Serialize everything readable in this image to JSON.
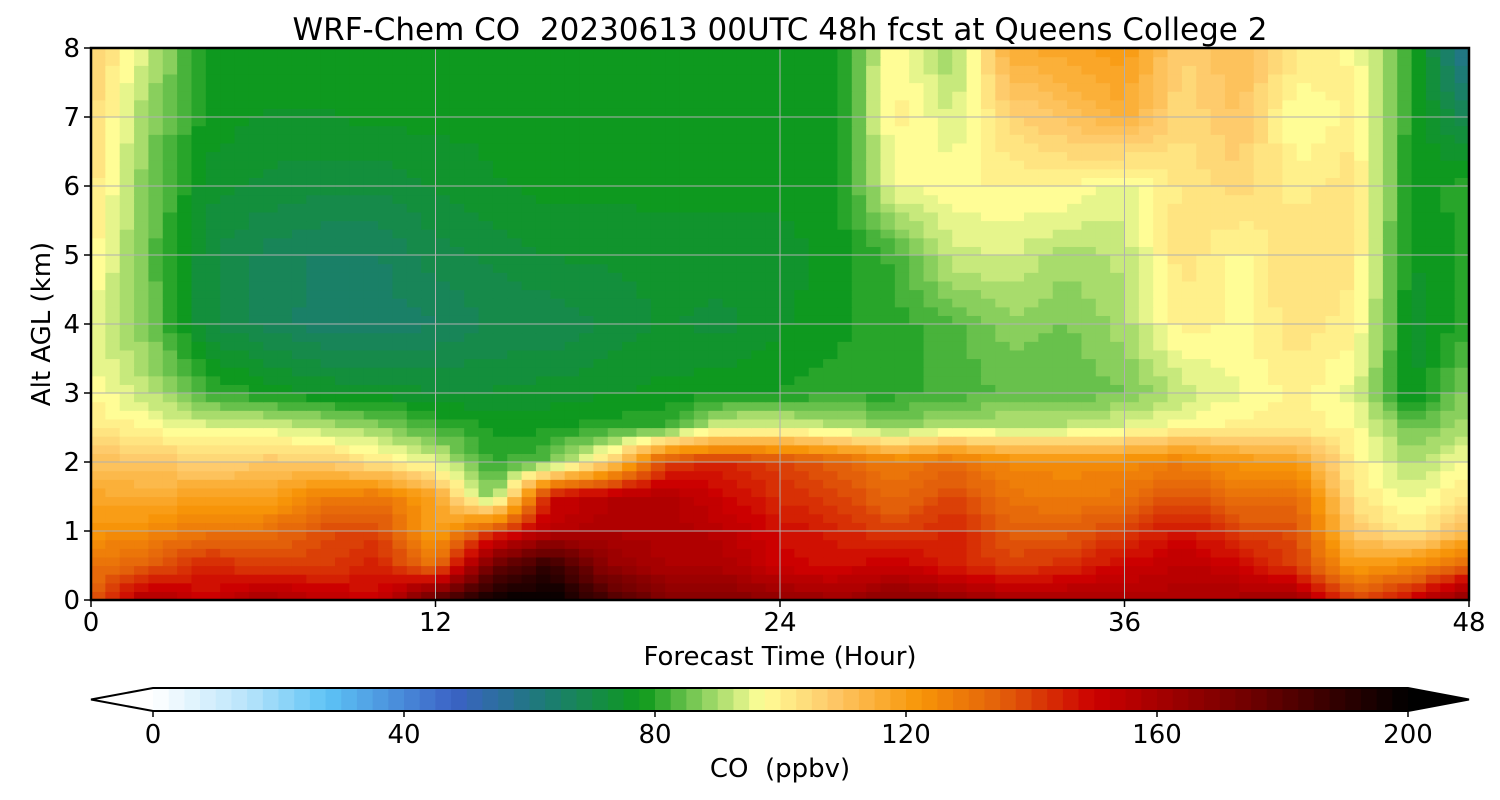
{
  "chart_data": {
    "type": "heatmap",
    "title": "WRF-Chem CO  20230613 00UTC 48h fcst at Queens College 2",
    "xlabel": "Forecast Time (Hour)",
    "ylabel": "Alt AGL (km)",
    "xlim": [
      0,
      48
    ],
    "ylim": [
      0,
      8
    ],
    "xticks": [
      0,
      12,
      24,
      36,
      48
    ],
    "yticks": [
      0,
      1,
      2,
      3,
      4,
      5,
      6,
      7,
      8
    ],
    "grid": true,
    "x": [
      0,
      2,
      4,
      6,
      8,
      10,
      12,
      14,
      16,
      18,
      20,
      22,
      24,
      26,
      28,
      30,
      32,
      34,
      36,
      38,
      40,
      42,
      44,
      46,
      48
    ],
    "y": [
      0,
      0.5,
      1,
      1.5,
      2,
      2.5,
      3,
      4,
      5,
      6,
      7,
      8
    ],
    "z": [
      [
        135,
        160,
        150,
        160,
        155,
        150,
        180,
        198,
        200,
        185,
        170,
        170,
        165,
        162,
        168,
        165,
        160,
        160,
        158,
        158,
        160,
        162,
        140,
        150,
        170
      ],
      [
        130,
        135,
        145,
        140,
        140,
        145,
        130,
        175,
        190,
        165,
        158,
        158,
        150,
        148,
        152,
        145,
        140,
        143,
        150,
        155,
        150,
        140,
        120,
        125,
        135
      ],
      [
        122,
        125,
        130,
        130,
        138,
        140,
        118,
        140,
        155,
        158,
        158,
        155,
        148,
        145,
        140,
        145,
        135,
        135,
        140,
        148,
        140,
        138,
        108,
        100,
        112
      ],
      [
        118,
        115,
        120,
        118,
        128,
        130,
        118,
        85,
        150,
        156,
        157,
        150,
        143,
        140,
        132,
        140,
        130,
        128,
        130,
        138,
        130,
        132,
        102,
        95,
        102
      ],
      [
        110,
        110,
        105,
        108,
        108,
        102,
        95,
        80,
        85,
        105,
        140,
        145,
        140,
        135,
        128,
        132,
        125,
        125,
        125,
        128,
        122,
        120,
        100,
        90,
        98
      ],
      [
        102,
        98,
        95,
        95,
        92,
        88,
        82,
        78,
        78,
        80,
        82,
        95,
        95,
        92,
        88,
        92,
        92,
        92,
        95,
        98,
        100,
        100,
        98,
        85,
        90
      ],
      [
        98,
        92,
        82,
        78,
        76,
        75,
        74,
        74,
        75,
        76,
        77,
        78,
        79,
        80,
        80,
        82,
        84,
        84,
        86,
        92,
        96,
        100,
        95,
        75,
        88
      ],
      [
        95,
        86,
        72,
        68,
        65,
        65,
        66,
        69,
        69,
        72,
        74,
        73,
        76,
        78,
        80,
        83,
        88,
        86,
        90,
        100,
        98,
        103,
        100,
        75,
        80
      ],
      [
        100,
        85,
        72,
        68,
        66,
        66,
        70,
        72,
        74,
        74,
        75,
        75,
        75,
        77,
        82,
        93,
        94,
        90,
        92,
        103,
        98,
        104,
        102,
        76,
        80
      ],
      [
        103,
        86,
        75,
        73,
        72,
        72,
        74,
        76,
        77,
        77,
        77,
        77,
        77,
        78,
        96,
        98,
        99,
        99,
        95,
        102,
        105,
        100,
        103,
        77,
        80
      ],
      [
        105,
        88,
        78,
        76,
        76,
        77,
        77,
        77,
        77,
        77,
        77,
        77,
        77,
        78,
        100,
        94,
        105,
        110,
        115,
        104,
        109,
        96,
        100,
        79,
        68
      ],
      [
        108,
        93,
        78,
        78,
        78,
        77,
        77,
        77,
        77,
        77,
        77,
        77,
        77,
        78,
        99,
        88,
        116,
        118,
        121,
        106,
        112,
        102,
        98,
        80,
        55
      ]
    ],
    "colorbar": {
      "label": "CO  (ppbv)",
      "min": 0,
      "max": 200,
      "ticks": [
        0,
        40,
        80,
        120,
        160,
        200
      ],
      "extend": "both",
      "stops": [
        {
          "v": 0,
          "c": "#ffffff"
        },
        {
          "v": 15,
          "c": "#b8e4fb"
        },
        {
          "v": 28,
          "c": "#5cc2f5"
        },
        {
          "v": 48,
          "c": "#3b62c5"
        },
        {
          "v": 62,
          "c": "#1d7a78"
        },
        {
          "v": 78,
          "c": "#0e9a1c"
        },
        {
          "v": 88,
          "c": "#8fd260"
        },
        {
          "v": 97,
          "c": "#ffff98"
        },
        {
          "v": 108,
          "c": "#fec96a"
        },
        {
          "v": 122,
          "c": "#f89608"
        },
        {
          "v": 135,
          "c": "#e3600a"
        },
        {
          "v": 150,
          "c": "#cc0000"
        },
        {
          "v": 175,
          "c": "#6e0000"
        },
        {
          "v": 200,
          "c": "#000000"
        }
      ]
    }
  }
}
